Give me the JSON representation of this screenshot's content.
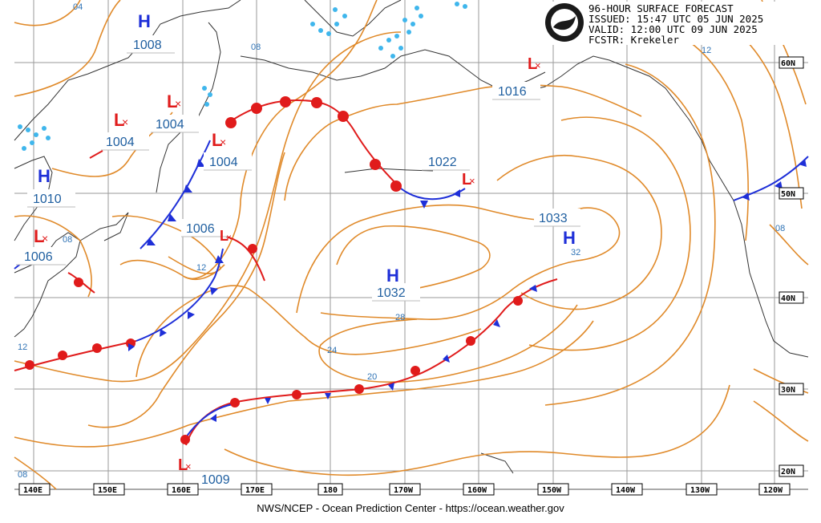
{
  "header": {
    "line1": "96-HOUR SURFACE FORECAST",
    "line2": "ISSUED: 15:47 UTC 05 JUN 2025",
    "line3": "VALID:  12:00 UTC 09 JUN 2025",
    "line4": "FCSTR:  Krekeler",
    "logo_text": "NOAA"
  },
  "footer": {
    "credit": "NWS/NCEP - Ocean Prediction Center - https://ocean.weather.gov"
  },
  "longitude_labels": [
    "140E",
    "150E",
    "160E",
    "170E",
    "180",
    "170W",
    "160W",
    "150W",
    "140W",
    "130W",
    "120W"
  ],
  "latitude_labels": [
    "60N",
    "50N",
    "40N",
    "30N",
    "20N"
  ],
  "colors": {
    "high": "#1e2fd8",
    "low": "#e01b1b",
    "cold_front": "#1e2fd8",
    "warm_front": "#e01b1b",
    "isobar": "#e08a2a",
    "ice": "#3fb6ec",
    "coast": "#333333",
    "grid": "#9a9a9a"
  },
  "highs": [
    {
      "letter": "H",
      "value": "1008"
    },
    {
      "letter": "H",
      "value": "1010"
    },
    {
      "letter": "H",
      "value": "1032"
    },
    {
      "letter": "H",
      "value": "1033"
    }
  ],
  "lows": [
    {
      "letter": "L",
      "value": "1004"
    },
    {
      "letter": "L",
      "value": "1004"
    },
    {
      "letter": "L",
      "value": "1004"
    },
    {
      "letter": "L",
      "value": "1006"
    },
    {
      "letter": "L",
      "value": "1006"
    },
    {
      "letter": "L",
      "value": "1022"
    },
    {
      "letter": "L",
      "value": "1016"
    },
    {
      "letter": "L",
      "value": "1009"
    }
  ],
  "isobar_labels": [
    "04",
    "08",
    "12",
    "12",
    "08",
    "08",
    "12",
    "24",
    "20",
    "28",
    "32",
    "08"
  ]
}
